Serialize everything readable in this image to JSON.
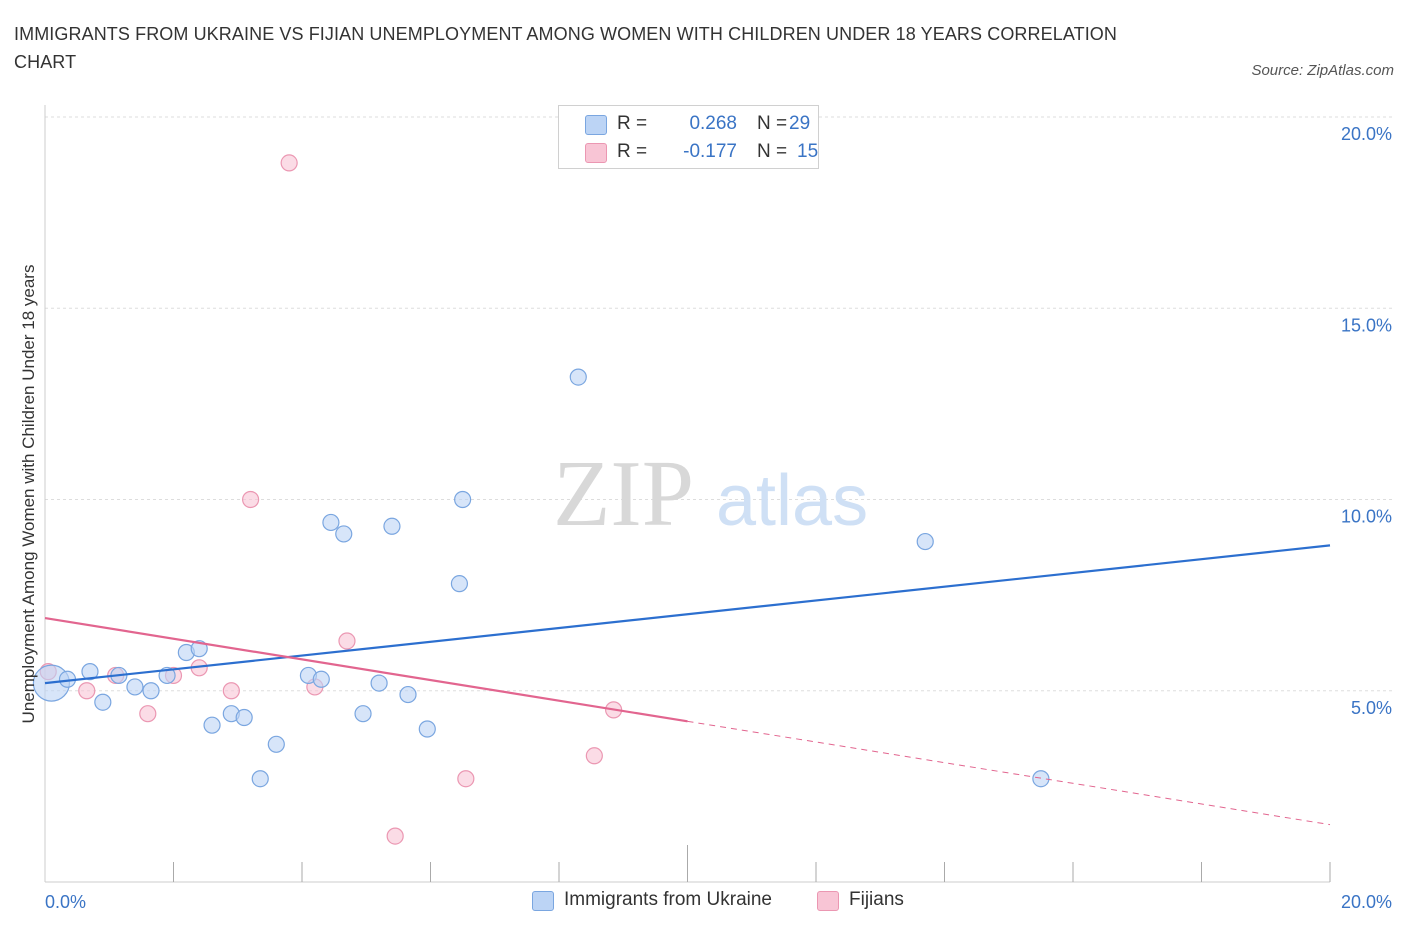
{
  "title": "IMMIGRANTS FROM UKRAINE VS FIJIAN UNEMPLOYMENT AMONG WOMEN WITH CHILDREN UNDER 18 YEARS CORRELATION CHART",
  "source": "Source: ZipAtlas.com",
  "watermark": {
    "zip": "ZIP",
    "atlas": "atlas"
  },
  "legend": {
    "rows": [
      {
        "r_label": "R =",
        "r_value": "0.268",
        "n_label": "N =",
        "n_value": "29"
      },
      {
        "r_label": "R =",
        "r_value": "-0.177",
        "n_label": "N =",
        "n_value": "15"
      }
    ]
  },
  "colors": {
    "ukraine_fill": "#bcd4f5",
    "ukraine_stroke": "#7aa6e0",
    "ukraine_line": "#2c6fcf",
    "fiji_fill": "#f8c5d5",
    "fiji_stroke": "#eb97b2",
    "fiji_line": "#e2658f",
    "tick_label": "#3a74c5",
    "grid": "#dddddd"
  },
  "chart_data": {
    "type": "scatter",
    "title": "IMMIGRANTS FROM UKRAINE VS FIJIAN UNEMPLOYMENT AMONG WOMEN WITH CHILDREN UNDER 18 YEARS CORRELATION CHART",
    "xlabel": "",
    "ylabel": "Unemployment Among Women with Children Under 18 years",
    "xlim": [
      0,
      20
    ],
    "ylim": [
      0,
      20
    ],
    "x_tick_labels": [
      "0.0%",
      "20.0%"
    ],
    "y_ticks": [
      5,
      10,
      15,
      20
    ],
    "y_tick_labels": [
      "5.0%",
      "10.0%",
      "15.0%",
      "20.0%"
    ],
    "grid": "horizontal dashed",
    "legend_position": "top-center and bottom",
    "series": [
      {
        "name": "Immigrants from Ukraine",
        "color": "#2c6fcf",
        "r": 0.268,
        "n": 29,
        "trend": {
          "x": [
            0,
            20
          ],
          "y": [
            5.2,
            8.8
          ]
        },
        "points": [
          {
            "x": 0.1,
            "y": 5.2,
            "big": true
          },
          {
            "x": 0.35,
            "y": 5.3
          },
          {
            "x": 0.7,
            "y": 5.5
          },
          {
            "x": 0.9,
            "y": 4.7
          },
          {
            "x": 1.15,
            "y": 5.4
          },
          {
            "x": 1.4,
            "y": 5.1
          },
          {
            "x": 1.65,
            "y": 5.0
          },
          {
            "x": 1.9,
            "y": 5.4
          },
          {
            "x": 2.2,
            "y": 6.0
          },
          {
            "x": 2.4,
            "y": 6.1
          },
          {
            "x": 2.6,
            "y": 4.1
          },
          {
            "x": 2.9,
            "y": 4.4
          },
          {
            "x": 3.1,
            "y": 4.3
          },
          {
            "x": 3.35,
            "y": 2.7
          },
          {
            "x": 3.6,
            "y": 3.6
          },
          {
            "x": 4.1,
            "y": 5.4
          },
          {
            "x": 4.3,
            "y": 5.3
          },
          {
            "x": 4.45,
            "y": 9.4
          },
          {
            "x": 4.65,
            "y": 9.1
          },
          {
            "x": 4.95,
            "y": 4.4
          },
          {
            "x": 5.2,
            "y": 5.2
          },
          {
            "x": 5.4,
            "y": 9.3
          },
          {
            "x": 5.65,
            "y": 4.9
          },
          {
            "x": 5.95,
            "y": 4.0
          },
          {
            "x": 6.45,
            "y": 7.8
          },
          {
            "x": 6.5,
            "y": 10.0
          },
          {
            "x": 8.3,
            "y": 13.2
          },
          {
            "x": 13.7,
            "y": 8.9
          },
          {
            "x": 15.5,
            "y": 2.7
          }
        ]
      },
      {
        "name": "Fijians",
        "color": "#e2658f",
        "r": -0.177,
        "n": 15,
        "trend": {
          "x": [
            0,
            10
          ],
          "y": [
            6.9,
            4.2
          ]
        },
        "trend_dashed": {
          "x": [
            10,
            20
          ],
          "y": [
            4.2,
            1.5
          ]
        },
        "points": [
          {
            "x": 0.05,
            "y": 5.5
          },
          {
            "x": 0.65,
            "y": 5.0
          },
          {
            "x": 1.1,
            "y": 5.4
          },
          {
            "x": 1.6,
            "y": 4.4
          },
          {
            "x": 2.0,
            "y": 5.4
          },
          {
            "x": 2.4,
            "y": 5.6
          },
          {
            "x": 2.9,
            "y": 5.0
          },
          {
            "x": 3.2,
            "y": 10.0
          },
          {
            "x": 3.8,
            "y": 18.8
          },
          {
            "x": 4.2,
            "y": 5.1
          },
          {
            "x": 4.7,
            "y": 6.3
          },
          {
            "x": 5.45,
            "y": 1.2
          },
          {
            "x": 6.55,
            "y": 2.7
          },
          {
            "x": 8.55,
            "y": 3.3
          },
          {
            "x": 8.85,
            "y": 4.5
          }
        ]
      }
    ]
  }
}
